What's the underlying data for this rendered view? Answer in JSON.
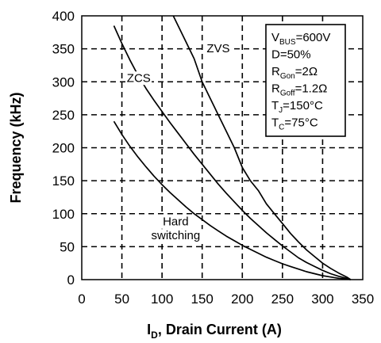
{
  "chart_data": {
    "type": "line",
    "xlabel": "I_D, Drain Current (A)",
    "xlabel_parts": {
      "main": "I",
      "sub": "D",
      "rest": ", Drain Current (A)"
    },
    "ylabel": "Frequency (kHz)",
    "xlim": [
      0,
      350
    ],
    "ylim": [
      0,
      400
    ],
    "xticks": [
      "0",
      "50",
      "100",
      "150",
      "200",
      "250",
      "300",
      "350"
    ],
    "yticks": [
      "0",
      "50",
      "100",
      "150",
      "200",
      "250",
      "300",
      "350",
      "400"
    ],
    "grid": true,
    "series": [
      {
        "name": "ZVS",
        "x": [
          114,
          120,
          130,
          140,
          150,
          160,
          170,
          180,
          190,
          200,
          210,
          220,
          230,
          240,
          250,
          260,
          270,
          280,
          290,
          300,
          310,
          320,
          330,
          335
        ],
        "y": [
          400,
          385,
          360,
          335,
          300,
          275,
          250,
          225,
          200,
          170,
          150,
          135,
          115,
          100,
          85,
          70,
          57,
          45,
          35,
          25,
          17,
          10,
          4,
          0
        ]
      },
      {
        "name": "ZCS",
        "x": [
          40,
          50,
          60,
          70,
          80,
          90,
          100,
          110,
          120,
          130,
          140,
          150,
          160,
          170,
          180,
          190,
          200,
          210,
          220,
          230,
          240,
          250,
          260,
          270,
          280,
          290,
          300,
          310,
          320,
          330,
          335
        ],
        "y": [
          385,
          358,
          333,
          310,
          290,
          272,
          255,
          238,
          222,
          206,
          190,
          175,
          160,
          145,
          131,
          118,
          105,
          93,
          82,
          71,
          61,
          51,
          42,
          33,
          26,
          20,
          14,
          9,
          5,
          2,
          0
        ]
      },
      {
        "name": "Hard switching",
        "x": [
          40,
          50,
          60,
          70,
          80,
          90,
          100,
          110,
          120,
          130,
          140,
          150,
          160,
          170,
          180,
          190,
          200,
          210,
          220,
          230,
          240,
          250,
          260,
          270,
          280,
          290,
          300,
          310,
          320,
          330,
          335
        ],
        "y": [
          240,
          220,
          202,
          186,
          171,
          157,
          144,
          132,
          121,
          110,
          100,
          91,
          82,
          74,
          66,
          59,
          52,
          46,
          40,
          34,
          29,
          24,
          20,
          16,
          12,
          9,
          6,
          4,
          2,
          1,
          0
        ]
      }
    ],
    "annotations": [
      {
        "text": "ZVS",
        "x": 170,
        "y": 345
      },
      {
        "text": "ZCS",
        "x": 71,
        "y": 300
      },
      {
        "text": "Hard",
        "x": 117,
        "y": 82
      },
      {
        "text": "switching",
        "x": 117,
        "y": 61
      }
    ],
    "conditions": [
      {
        "main": "V",
        "sub": "BUS",
        "rest": "=600V"
      },
      {
        "main": "D=50%",
        "sub": "",
        "rest": ""
      },
      {
        "main": "R",
        "sub": "Gon",
        "rest": "=2Ω"
      },
      {
        "main": "R",
        "sub": "Goff",
        "rest": "=1.2Ω"
      },
      {
        "main": "T",
        "sub": "J",
        "rest": "=150°C"
      },
      {
        "main": "T",
        "sub": "C",
        "rest": "=75°C"
      }
    ],
    "colors": {
      "line": "#000000",
      "grid": "#000000",
      "background": "#ffffff"
    }
  }
}
